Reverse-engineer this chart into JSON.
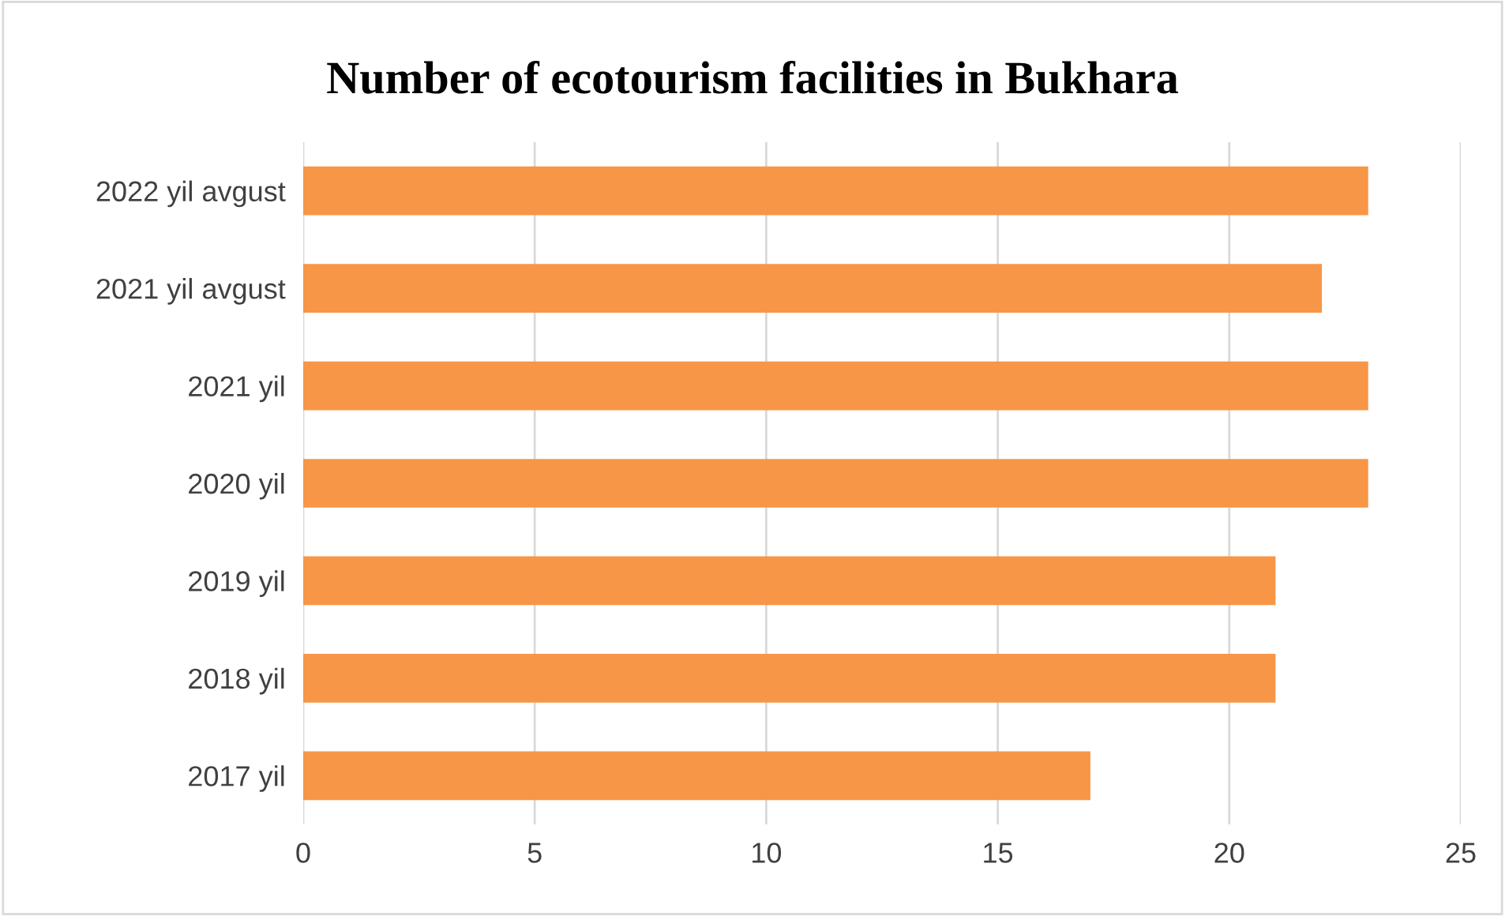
{
  "chart_data": {
    "type": "bar",
    "orientation": "horizontal",
    "title": "Number of ecotourism facilities in Bukhara",
    "categories": [
      "2022 yil avgust",
      "2021 yil avgust",
      "2021 yil",
      "2020 yil",
      "2019 yil",
      "2018 yil",
      "2017 yil"
    ],
    "values": [
      23,
      22,
      23,
      23,
      21,
      21,
      17
    ],
    "color": "#f79646",
    "xlim": [
      0,
      25
    ],
    "xticks": [
      0,
      5,
      10,
      15,
      20,
      25
    ],
    "grid": "x",
    "legend": false
  }
}
